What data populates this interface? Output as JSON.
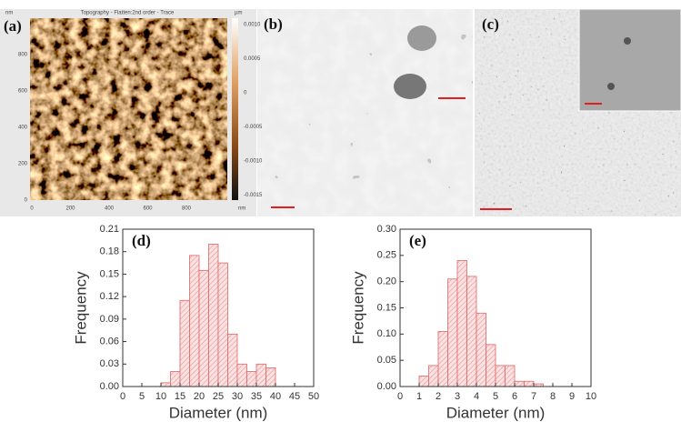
{
  "panels": {
    "a": {
      "label": "(a)",
      "title": "Topography - Flatten:2nd order - Trace",
      "y_unit": "nm",
      "x_unit": "nm",
      "bar_unit": "µm",
      "xticks": [
        "0",
        "200",
        "400",
        "600",
        "800"
      ],
      "yticks": [
        "800",
        "600",
        "400",
        "200",
        "0"
      ],
      "bar_ticks": [
        "0.0010",
        "0.0005",
        "0",
        "-0.0005",
        "-0.0010",
        "-0.0015"
      ]
    },
    "b": {
      "label": "(b)"
    },
    "c": {
      "label": "(c)"
    }
  },
  "chart_data": [
    {
      "type": "histogram",
      "title": "(d)",
      "xlabel": "Diameter (nm)",
      "ylabel": "Frequency",
      "color": "#e06464",
      "bins": [
        10,
        12.5,
        15,
        17.5,
        20,
        22.5,
        25,
        27.5,
        30,
        32.5,
        35,
        37.5,
        40
      ],
      "values": [
        0.005,
        0.02,
        0.115,
        0.175,
        0.155,
        0.19,
        0.165,
        0.07,
        0.03,
        0.02,
        0.03,
        0.025
      ],
      "xlim": [
        0,
        50
      ],
      "xticks": [
        0,
        5,
        10,
        15,
        20,
        25,
        30,
        35,
        40,
        45,
        50
      ],
      "ylim": [
        0,
        0.21
      ],
      "yticks": [
        {
          "value": 0,
          "label": "0.00"
        },
        {
          "value": 0.03,
          "label": "0.03"
        },
        {
          "value": 0.06,
          "label": "0.06"
        },
        {
          "value": 0.09,
          "label": "0.09"
        },
        {
          "value": 0.12,
          "label": "0.12"
        },
        {
          "value": 0.15,
          "label": "0.15"
        },
        {
          "value": 0.18,
          "label": "0.18"
        },
        {
          "value": 0.21,
          "label": "0.21"
        }
      ]
    },
    {
      "type": "histogram",
      "title": "(e)",
      "xlabel": "Diameter (nm)",
      "ylabel": "Frequency",
      "color": "#e06464",
      "bins": [
        1,
        1.5,
        2,
        2.5,
        3,
        3.5,
        4,
        4.5,
        5,
        5.5,
        6,
        6.5,
        7,
        7.5
      ],
      "values": [
        0.02,
        0.04,
        0.105,
        0.205,
        0.24,
        0.21,
        0.14,
        0.08,
        0.04,
        0.04,
        0.01,
        0.01,
        0.005
      ],
      "xlim": [
        0,
        10
      ],
      "xticks": [
        0,
        1,
        2,
        3,
        4,
        5,
        6,
        7,
        8,
        9,
        10
      ],
      "ylim": [
        0,
        0.3
      ],
      "yticks": [
        {
          "value": 0,
          "label": "0.00"
        },
        {
          "value": 0.05,
          "label": "0.05"
        },
        {
          "value": 0.1,
          "label": "0.10"
        },
        {
          "value": 0.15,
          "label": "0.15"
        },
        {
          "value": 0.2,
          "label": "0.20"
        },
        {
          "value": 0.25,
          "label": "0.25"
        },
        {
          "value": 0.3,
          "label": "0.30"
        }
      ]
    }
  ]
}
